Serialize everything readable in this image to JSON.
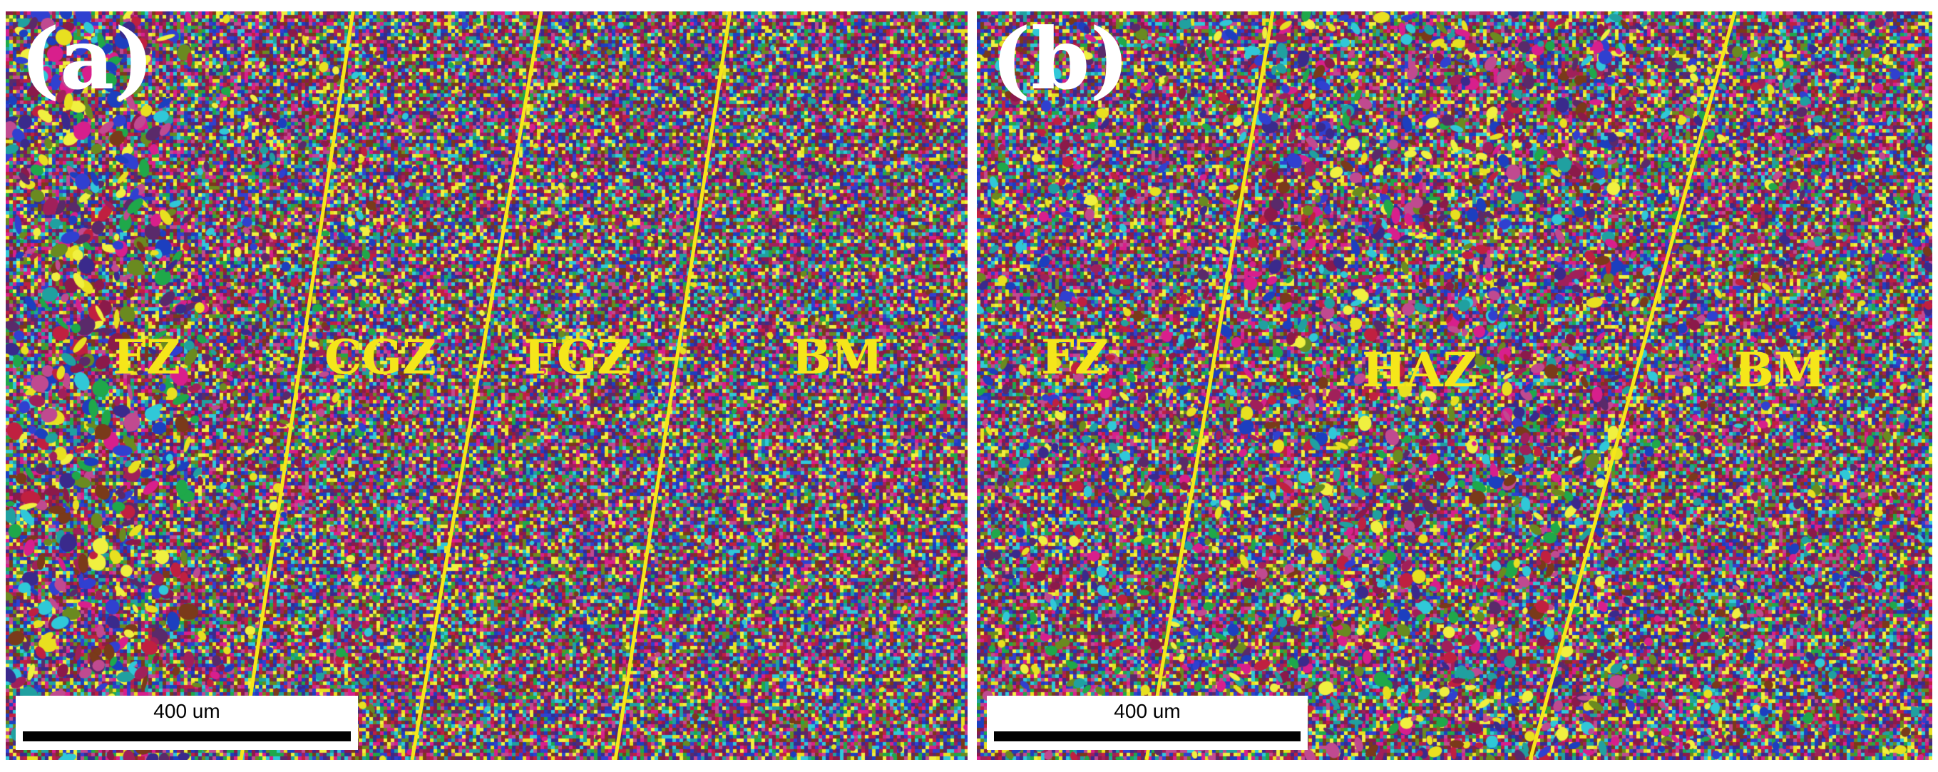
{
  "panels": [
    {
      "label": "(a)",
      "zones": [
        "FZ",
        "CGZ",
        "FGZ",
        "BM"
      ],
      "scale_bar": "400 um"
    },
    {
      "label": "(b)",
      "zones": [
        "FZ",
        "HAZ",
        "BM"
      ],
      "scale_bar": "400 um"
    }
  ],
  "colors": {
    "boundary_line": "#f5e61a",
    "zone_label": "#f5e61a",
    "panel_label": "#ffffff",
    "grain_palette": [
      "#8b1a4a",
      "#a0205a",
      "#3a2a8c",
      "#1c3fbf",
      "#1fa84a",
      "#30c8d8",
      "#e8e020",
      "#d81f8c",
      "#7a3a1a",
      "#5a2a6a",
      "#c02040",
      "#20a0a0",
      "#6a8a20",
      "#f0f040",
      "#3040d0",
      "#c04a90"
    ]
  }
}
